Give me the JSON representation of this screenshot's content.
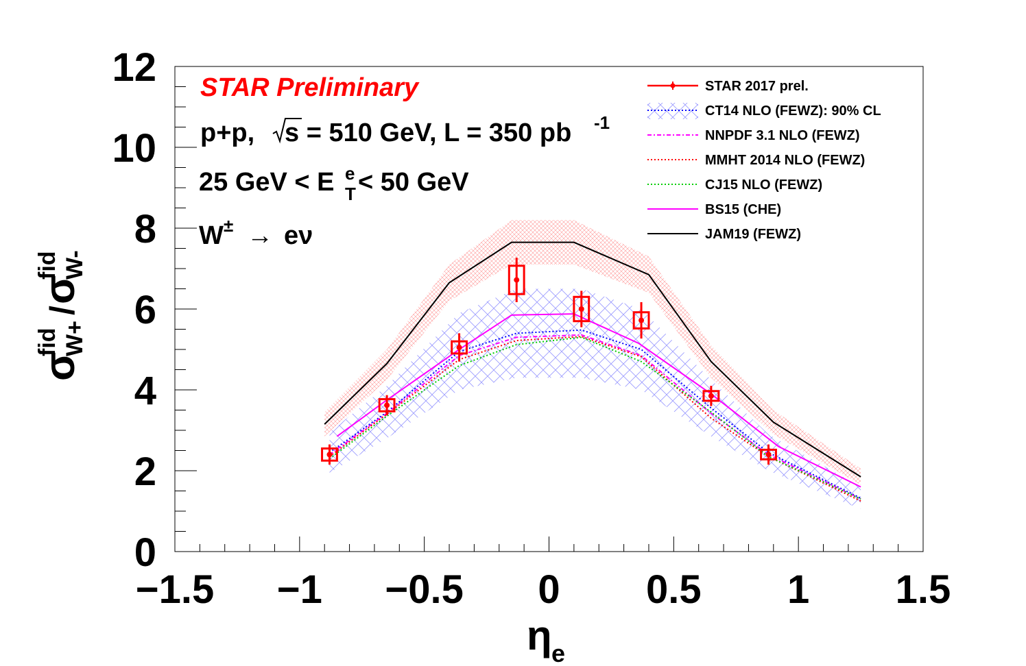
{
  "annotations": {
    "star_label": "STAR Preliminary",
    "line1_pp": "p+p,",
    "line1_rest": "s = 510 GeV, L = 350 pb",
    "line1_sup": "-1",
    "line2_pre": "25 GeV < E",
    "line2_sup": "e",
    "line2_sub": "T",
    "line2_post": " < 50 GeV",
    "line3_w": "W",
    "line3_pm": "±",
    "line3_arrow": "→",
    "line3_ev": "eν"
  },
  "axis_titles": {
    "x_main": "η",
    "x_sub": "e",
    "y_sigma": "σ",
    "y_fid": "fid",
    "y_wplus": "W+",
    "y_slash": "/",
    "y_wminus": "W-"
  },
  "chart_data": {
    "type": "line",
    "title": "",
    "xlim": [
      -1.5,
      1.5
    ],
    "ylim": [
      0,
      12
    ],
    "x_ticks": [
      -1.5,
      -1,
      -0.5,
      0,
      0.5,
      1,
      1.5
    ],
    "x_tick_labels": [
      "−1.5",
      "−1",
      "−0.5",
      "0",
      "0.5",
      "1",
      "1.5"
    ],
    "y_ticks": [
      0,
      2,
      4,
      6,
      8,
      10,
      12
    ],
    "y_tick_labels": [
      "0",
      "2",
      "4",
      "6",
      "8",
      "10",
      "12"
    ],
    "legend_position": "top-right",
    "data_points": {
      "name": "STAR 2017 prel.",
      "color": "#ff0000",
      "x": [
        -0.88,
        -0.65,
        -0.36,
        -0.13,
        0.13,
        0.37,
        0.65,
        0.88
      ],
      "y": [
        2.4,
        3.62,
        5.05,
        6.72,
        6.0,
        5.72,
        3.85,
        2.4
      ],
      "stat_err": [
        0.25,
        0.25,
        0.35,
        0.55,
        0.45,
        0.45,
        0.25,
        0.25
      ],
      "sys_err": [
        0.15,
        0.15,
        0.15,
        0.35,
        0.3,
        0.2,
        0.12,
        0.05
      ],
      "x_halfwidth": [
        0.03,
        0.03,
        0.03,
        0.03,
        0.03,
        0.03,
        0.03,
        0.03
      ]
    },
    "series": [
      {
        "name": "CT14 NLO (FEWZ): 90% CL",
        "color": "#0000ff",
        "style": "dotted",
        "x": [
          -0.88,
          -0.65,
          -0.36,
          -0.13,
          0.13,
          0.37,
          0.65,
          0.88,
          1.25
        ],
        "y": [
          2.45,
          3.45,
          4.95,
          5.4,
          5.48,
          5.0,
          3.55,
          2.45,
          1.32
        ],
        "band_lo": [
          1.95,
          2.8,
          4.0,
          4.3,
          4.3,
          4.0,
          2.85,
          2.0,
          1.05
        ],
        "band_hi": [
          2.95,
          4.1,
          5.9,
          6.5,
          6.5,
          6.0,
          4.25,
          2.9,
          1.6
        ]
      },
      {
        "name": "NNPDF 3.1 NLO (FEWZ)",
        "color": "#ff00ff",
        "style": "dashdot",
        "x": [
          -0.88,
          -0.65,
          -0.36,
          -0.13,
          0.13,
          0.37,
          0.65,
          0.88,
          1.25
        ],
        "y": [
          2.4,
          3.42,
          4.85,
          5.3,
          5.36,
          4.85,
          3.42,
          2.4,
          1.3
        ]
      },
      {
        "name": "MMHT 2014 NLO (FEWZ)",
        "color": "#ff0000",
        "style": "dotted",
        "x": [
          -0.88,
          -0.65,
          -0.36,
          -0.13,
          0.13,
          0.37,
          0.65,
          0.88,
          1.25
        ],
        "y": [
          2.35,
          3.4,
          4.75,
          5.22,
          5.32,
          4.82,
          3.3,
          2.35,
          1.25
        ]
      },
      {
        "name": "CJ15 NLO (FEWZ)",
        "color": "#00cc00",
        "style": "dotted",
        "x": [
          -0.88,
          -0.65,
          -0.36,
          -0.13,
          0.13,
          0.37,
          0.65,
          0.88,
          1.25
        ],
        "y": [
          2.3,
          3.35,
          4.6,
          5.12,
          5.3,
          4.7,
          3.45,
          2.35,
          1.3
        ]
      },
      {
        "name": "BS15 (CHE)",
        "color": "#ff00ff",
        "style": "solid",
        "x": [
          -0.85,
          -0.65,
          -0.36,
          -0.15,
          0.1,
          0.36,
          0.65,
          0.92,
          1.25
        ],
        "y": [
          2.85,
          3.75,
          5.0,
          5.85,
          5.88,
          5.15,
          3.9,
          2.6,
          1.6
        ]
      },
      {
        "name": "JAM19 (FEWZ)",
        "color": "#000000",
        "style": "solid",
        "x": [
          -0.9,
          -0.65,
          -0.4,
          -0.15,
          0.1,
          0.4,
          0.65,
          0.9,
          1.25
        ],
        "y": [
          3.15,
          4.65,
          6.65,
          7.65,
          7.65,
          6.85,
          4.7,
          3.2,
          1.85
        ],
        "band_lo": [
          2.85,
          4.25,
          6.2,
          7.1,
          7.1,
          6.4,
          4.3,
          2.9,
          1.65
        ],
        "band_hi": [
          3.45,
          5.0,
          7.1,
          8.2,
          8.2,
          7.3,
          5.1,
          3.5,
          2.05
        ]
      }
    ]
  }
}
